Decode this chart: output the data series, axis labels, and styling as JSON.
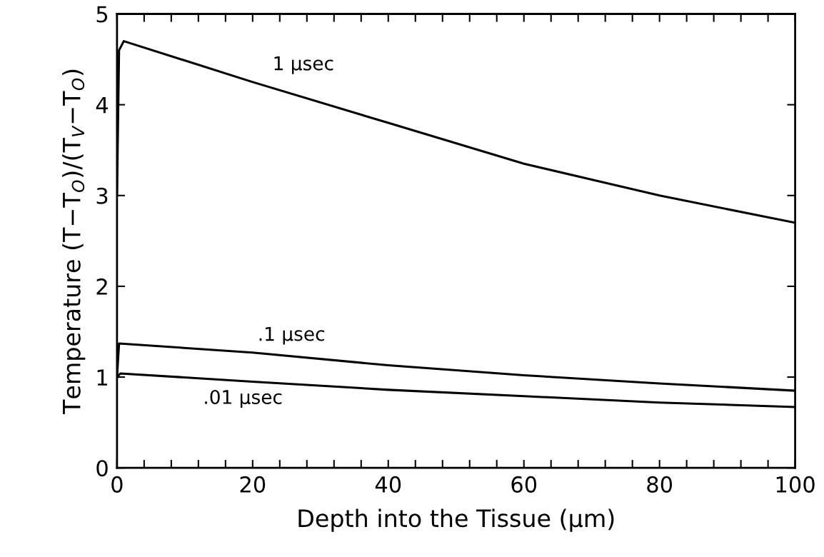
{
  "chart_data": {
    "type": "line",
    "xlabel": "Depth into the Tissue (μm)",
    "ylabel": "Temperature (T−T$_{O}$)/(T$_{V}$−T$_{O}$)",
    "series": [
      {
        "name": "1 μsec",
        "color": "#000000",
        "x": [
          0,
          0.3,
          1,
          20,
          40,
          60,
          80,
          100
        ],
        "values": [
          3.0,
          4.6,
          4.7,
          4.25,
          3.8,
          3.35,
          3.0,
          2.7
        ]
      },
      {
        "name": ".1 μsec",
        "color": "#000000",
        "x": [
          0,
          0.3,
          20,
          40,
          60,
          80,
          100
        ],
        "values": [
          1.0,
          1.37,
          1.27,
          1.13,
          1.02,
          0.93,
          0.85
        ]
      },
      {
        "name": ".01 μsec",
        "color": "#000000",
        "x": [
          0,
          0.5,
          20,
          40,
          60,
          80,
          100
        ],
        "values": [
          1.0,
          1.04,
          0.95,
          0.86,
          0.79,
          0.72,
          0.67
        ]
      }
    ],
    "xlim": [
      0,
      100
    ],
    "xticks": [
      0,
      {
        "value": 4,
        "label": null
      },
      {
        "value": 8,
        "label": null
      },
      {
        "value": 12,
        "label": null
      },
      {
        "value": 16,
        "label": null
      },
      20,
      {
        "value": 24,
        "label": null
      },
      {
        "value": 28,
        "label": null
      },
      {
        "value": 32,
        "label": null
      },
      {
        "value": 36,
        "label": null
      },
      40,
      {
        "value": 44,
        "label": null
      },
      {
        "value": 48,
        "label": null
      },
      {
        "value": 52,
        "label": null
      },
      {
        "value": 56,
        "label": null
      },
      60,
      {
        "value": 64,
        "label": null
      },
      {
        "value": 68,
        "label": null
      },
      {
        "value": 72,
        "label": null
      },
      {
        "value": 76,
        "label": null
      },
      80,
      {
        "value": 84,
        "label": null
      },
      {
        "value": 88,
        "label": null
      },
      {
        "value": 92,
        "label": null
      },
      {
        "value": 96,
        "label": null
      },
      100
    ],
    "ylim": [
      0,
      5
    ],
    "yticks": [
      0,
      1,
      2,
      3,
      4,
      5
    ],
    "grid": false,
    "legend": false,
    "marker": "none",
    "line_style": "solid"
  }
}
